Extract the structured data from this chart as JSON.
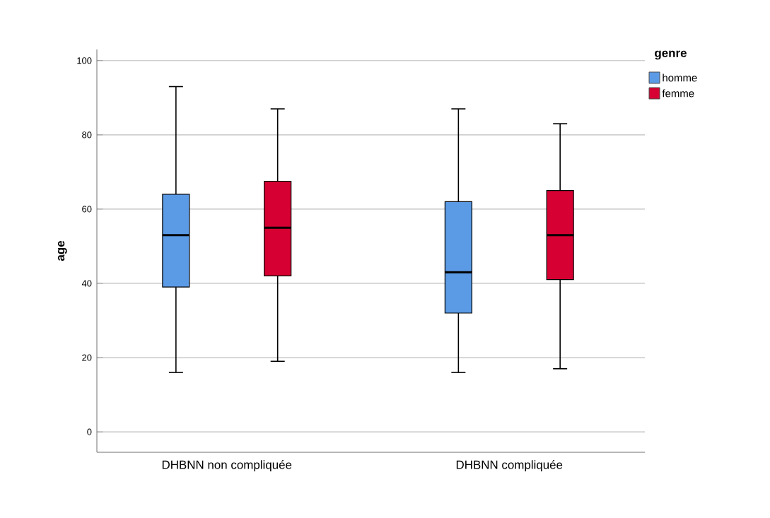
{
  "chart_data": {
    "type": "box",
    "ylabel": "age",
    "legend_title": "genre",
    "legend": "top right",
    "grid": "y",
    "categories": [
      "DHBNN non compliquée",
      "DHBNN compliquée"
    ],
    "ylim": [
      -5.5,
      103
    ],
    "yticks": [
      0,
      20,
      40,
      60,
      80,
      100
    ],
    "series": [
      {
        "name": "homme",
        "color": "#5b9be6",
        "boxes": [
          {
            "low": 16,
            "q1": 39,
            "median": 53,
            "q3": 64,
            "high": 93
          },
          {
            "low": 16,
            "q1": 32,
            "median": 43,
            "q3": 62,
            "high": 87
          }
        ]
      },
      {
        "name": "femme",
        "color": "#d60033",
        "boxes": [
          {
            "low": 19,
            "q1": 42,
            "median": 55,
            "q3": 67.5,
            "high": 87
          },
          {
            "low": 17,
            "q1": 41,
            "median": 53,
            "q3": 65,
            "high": 83
          }
        ]
      }
    ]
  }
}
